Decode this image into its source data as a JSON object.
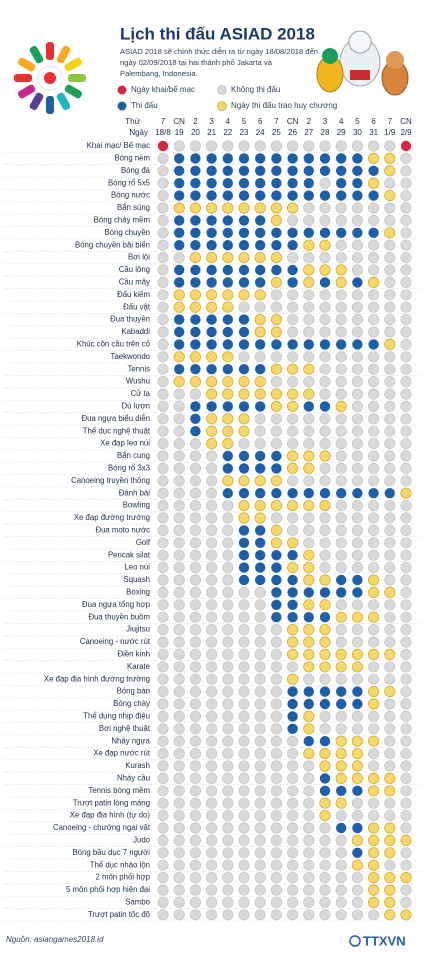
{
  "header": {
    "title": "Lịch thi đấu ASIAD 2018",
    "description": [
      "ASIAD 2018 sẽ chính thức diễn ra từ ngày 18/08/2018 đến",
      "ngày 02/09/2018  tại hai thành phố Jakarta và",
      "Palembang, Indonesia."
    ]
  },
  "legend": [
    {
      "label": "Ngày khai/bế mạc",
      "color": "#d7263d"
    },
    {
      "label": "Không thi đấu",
      "color": "#d9d9d9"
    },
    {
      "label": "Thi đấu",
      "color": "#1f5fa8"
    },
    {
      "label": "Ngày thi đấu trao huy chương",
      "color": "#f6d76b"
    }
  ],
  "schedule": {
    "weekday_label": "Thứ",
    "date_label": "Ngày",
    "days": [
      {
        "weekday": "7",
        "date": "18/8"
      },
      {
        "weekday": "CN",
        "date": "19"
      },
      {
        "weekday": "2",
        "date": "20"
      },
      {
        "weekday": "3",
        "date": "21"
      },
      {
        "weekday": "4",
        "date": "22"
      },
      {
        "weekday": "5",
        "date": "23"
      },
      {
        "weekday": "6",
        "date": "24"
      },
      {
        "weekday": "7",
        "date": "25"
      },
      {
        "weekday": "CN",
        "date": "26"
      },
      {
        "weekday": "2",
        "date": "27"
      },
      {
        "weekday": "3",
        "date": "28"
      },
      {
        "weekday": "4",
        "date": "29"
      },
      {
        "weekday": "5",
        "date": "30"
      },
      {
        "weekday": "6",
        "date": "31"
      },
      {
        "weekday": "7",
        "date": "1/9"
      },
      {
        "weekday": "CN",
        "date": "2/9"
      }
    ],
    "rows": [
      {
        "sport": "Khai mạc/ Bế mạc",
        "status": "0111111111111110"
      },
      {
        "sport": "Bóng ném",
        "status": "1222222222222331"
      },
      {
        "sport": "Bóng đá",
        "status": "1222222222222231"
      },
      {
        "sport": "Bóng rổ 5x5",
        "status": "1222222222122311"
      },
      {
        "sport": "Bóng nước",
        "status": "1222222222222231"
      },
      {
        "sport": "Bắn súng",
        "status": "1333333331111111"
      },
      {
        "sport": "Bóng chày mềm",
        "status": "1222222311111111"
      },
      {
        "sport": "Bóng chuyền",
        "status": "1222222222222231"
      },
      {
        "sport": "Bóng chuyền bãi biển",
        "status": "1222222223311111"
      },
      {
        "sport": "Bơi lội",
        "status": "1133333311111111"
      },
      {
        "sport": "Cầu lông",
        "status": "1222222223331111"
      },
      {
        "sport": "Cầu mây",
        "status": "1222222323232311"
      },
      {
        "sport": "Đấu kiếm",
        "status": "1333333111111111"
      },
      {
        "sport": "Đấu vật",
        "status": "1333311111111111"
      },
      {
        "sport": "Đua thuyền",
        "status": "1222223311111111"
      },
      {
        "sport": "Kabaddi",
        "status": "1222223311111111"
      },
      {
        "sport": "Khúc côn cầu trên cỏ",
        "status": "1222222222222231"
      },
      {
        "sport": "Taekwondo",
        "status": "1333311111111111"
      },
      {
        "sport": "Tennis",
        "status": "1222222333111111"
      },
      {
        "sport": "Wushu",
        "status": "1333333111111111"
      },
      {
        "sport": "Cử tạ",
        "status": "1113333333111111"
      },
      {
        "sport": "Dù lượn",
        "status": "1122222332231111"
      },
      {
        "sport": "Đua ngựa biểu diễn",
        "status": "1123331111111111"
      },
      {
        "sport": "Thể dục nghệ thuật",
        "status": "1123331111111111"
      },
      {
        "sport": "Xe đạp leo núi",
        "status": "1113311111111111"
      },
      {
        "sport": "Bắn cung",
        "status": "1111222233311111"
      },
      {
        "sport": "Bóng rổ 3x3",
        "status": "1111222233111111"
      },
      {
        "sport": "Canoeing truyền thống",
        "status": "1111333311111111"
      },
      {
        "sport": "Đánh bài",
        "status": "1111222222222223"
      },
      {
        "sport": "Bowling",
        "status": "1111133333311111"
      },
      {
        "sport": "Xe đạp đường trường",
        "status": "1111133111111111"
      },
      {
        "sport": "Đua moto nước",
        "status": "1111122311111111"
      },
      {
        "sport": "Golf",
        "status": "1111122331111111"
      },
      {
        "sport": "Pencak silat",
        "status": "1111122223111111"
      },
      {
        "sport": "Leo núi",
        "status": "1111122233111111"
      },
      {
        "sport": "Squash",
        "status": "1111122223322311"
      },
      {
        "sport": "Boxing",
        "status": "1111111222222331"
      },
      {
        "sport": "Đua ngựa tổng hợp",
        "status": "1111111223311111"
      },
      {
        "sport": "Đua thuyền buồm",
        "status": "1111111222233311"
      },
      {
        "sport": "Jiujitsu",
        "status": "1111111133311111"
      },
      {
        "sport": "Canoeing - nước rút",
        "status": "1111111133311111"
      },
      {
        "sport": "Điền kinh",
        "status": "1111111133333331"
      },
      {
        "sport": "Karate",
        "status": "1111111113333111"
      },
      {
        "sport": "Xe đạp địa hình đường trường",
        "status": "1111111131111111"
      },
      {
        "sport": "Bóng bàn",
        "status": "1111111122222331"
      },
      {
        "sport": "Bóng chày",
        "status": "1111111122222311"
      },
      {
        "sport": "Thể dụng nhịp điệu",
        "status": "1111111123111111"
      },
      {
        "sport": "Bơi nghệ thuật",
        "status": "1111111123111111"
      },
      {
        "sport": "Nhảy ngựa",
        "status": "1111111112233311"
      },
      {
        "sport": "Xe đạp nước rút",
        "status": "1111111113333111"
      },
      {
        "sport": "Kurash",
        "status": "1111111111333111"
      },
      {
        "sport": "Nhảy cầu",
        "status": "1111111111233331"
      },
      {
        "sport": "Tennis bóng mềm",
        "status": "1111111111222331"
      },
      {
        "sport": "Trượt patin lòng máng",
        "status": "1111111111331111"
      },
      {
        "sport": "Xe đạp địa hình (tự do)",
        "status": "1111111111311111"
      },
      {
        "sport": "Canoeing - chướng ngại vật",
        "status": "1111111111122331"
      },
      {
        "sport": "Judo",
        "status": "1111111111113333"
      },
      {
        "sport": "Bóng bầu dục 7 người",
        "status": "1111111111112331"
      },
      {
        "sport": "Thể dục nhào lộn",
        "status": "1111111111113311"
      },
      {
        "sport": "2 môn phối hợp",
        "status": "1111111111111333"
      },
      {
        "sport": "5 môn phối hợp hiện đại",
        "status": "1111111111111331"
      },
      {
        "sport": "Sambo",
        "status": "1111111111111331"
      },
      {
        "sport": "Trượt patin tốc độ",
        "status": "1111111111111133"
      }
    ]
  },
  "footer": {
    "source": "Nguồn: asiangames2018.id",
    "agency": "TTXVN"
  }
}
